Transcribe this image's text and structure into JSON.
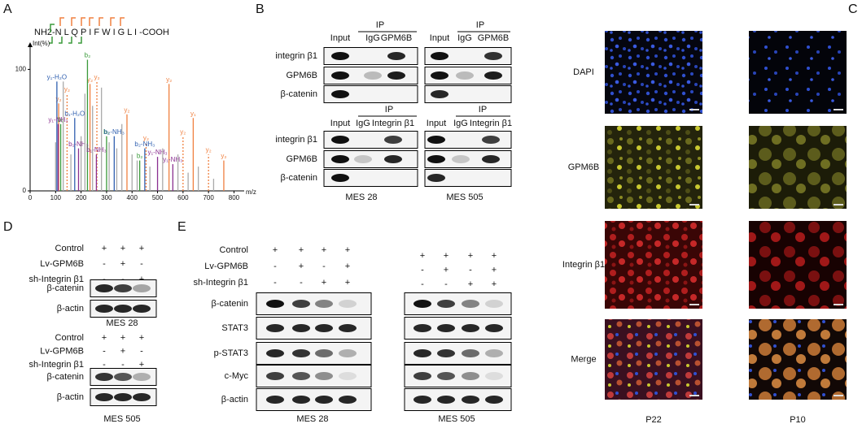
{
  "chart_data": {
    "type": "spectrum",
    "y_label": "Int(%)",
    "x_label": "m/z",
    "xlim": [
      0,
      840
    ],
    "ylim": [
      0,
      117
    ],
    "xticks": [
      0,
      100,
      200,
      300,
      400,
      500,
      600,
      700,
      800
    ],
    "yticks": [
      0,
      100
    ],
    "series": [
      {
        "color": "#f08040",
        "x": [
          112,
          145,
          235,
          262,
          380,
          455,
          545,
          600,
          640,
          700,
          760
        ],
        "values": [
          72,
          80,
          88,
          90,
          63,
          40,
          88,
          45,
          60,
          30,
          25
        ],
        "value_labels": [
          "y₂",
          "y₂",
          "y₂",
          "y₂",
          "y₂",
          "y₂",
          "y₂",
          "y₂",
          "y₁",
          "y₂",
          "y₂"
        ]
      },
      {
        "color": "#3a9a3a",
        "x": [
          120,
          225,
          300,
          430
        ],
        "values": [
          55,
          108,
          45,
          25
        ],
        "value_labels": [
          "b₂",
          "b₂",
          "b₂",
          "b₂"
        ]
      },
      {
        "color": "#3060b0",
        "x": [
          105,
          175,
          330,
          450
        ],
        "values": [
          90,
          60,
          45,
          35
        ],
        "value_labels": [
          "y₁-H₂O",
          "b₁-H₂O",
          "b₂-NH₃",
          "b₂-NH₃"
        ]
      },
      {
        "color": "#8a3090",
        "x": [
          110,
          190,
          260,
          500,
          560
        ],
        "values": [
          55,
          35,
          30,
          28,
          22
        ],
        "value_labels": [
          "y₁-NH₃",
          "b₁-NH₃",
          "b₁-NH₃",
          "y₁-NH₃",
          "y₁-NH₃"
        ]
      },
      {
        "color": "#aaaaaa",
        "x": [
          100,
          130,
          160,
          200,
          215,
          245,
          280,
          310,
          340,
          360,
          400,
          420,
          470,
          520,
          580,
          620,
          660,
          720
        ],
        "values": [
          40,
          90,
          30,
          45,
          80,
          70,
          85,
          40,
          35,
          55,
          30,
          25,
          20,
          35,
          30,
          15,
          20,
          10
        ]
      }
    ]
  },
  "figure": {
    "A": {
      "label": "A",
      "sequence": "NH2-N L Q P I F W I G L I -COOH"
    },
    "B": {
      "label": "B",
      "ip": "IP",
      "lanes_gpm6b": [
        "Input",
        "IgG",
        "GPM6B"
      ],
      "lanes_itgb1": [
        "Input",
        "IgG",
        "Integrin β1"
      ],
      "rows": [
        "integrin β1",
        "GPM6B",
        "β-catenin"
      ],
      "cell_lines": [
        "MES 28",
        "MES 505"
      ]
    },
    "C": {
      "label": "C",
      "channels": [
        "DAPI",
        "GPM6B",
        "Integrin β1",
        "Merge"
      ],
      "samples": [
        "P22",
        "P10"
      ]
    },
    "D": {
      "label": "D",
      "conditions": [
        "Control",
        "Lv-GPM6B",
        "sh-Integrin β1"
      ],
      "signs": [
        [
          "+",
          "+",
          "+"
        ],
        [
          "-",
          "+",
          "-"
        ],
        [
          "-",
          "-",
          "+"
        ]
      ],
      "proteins": [
        "β-catenin",
        "β-actin"
      ],
      "cell_lines": [
        "MES 28",
        "MES 505"
      ]
    },
    "E": {
      "label": "E",
      "conditions": [
        "Control",
        "Lv-GPM6B",
        "sh-Integrin β1"
      ],
      "signs": [
        [
          "+",
          "+",
          "+",
          "+"
        ],
        [
          "-",
          "+",
          "-",
          "+"
        ],
        [
          "-",
          "-",
          "+",
          "+"
        ]
      ],
      "proteins": [
        "β-catenin",
        "STAT3",
        "p-STAT3",
        "c-Myc",
        "β-actin"
      ],
      "cell_lines": [
        "MES 28",
        "MES 505"
      ]
    }
  }
}
